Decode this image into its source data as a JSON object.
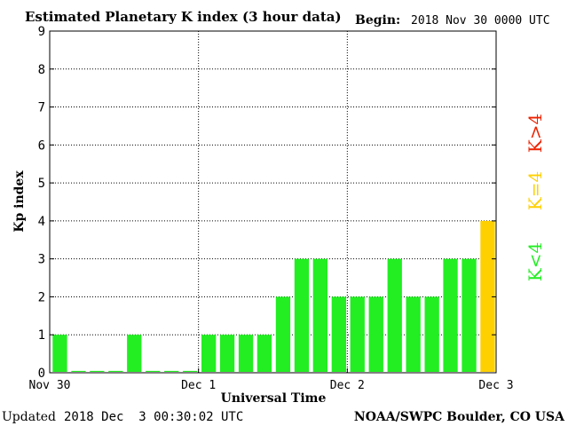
{
  "chart_data": {
    "type": "bar",
    "title": "Estimated Planetary K index (3 hour data)",
    "begin_label": "Begin:",
    "begin_value": "2018 Nov 30 0000 UTC",
    "xlabel": "Universal Time",
    "ylabel": "Kp index",
    "ylim": [
      0,
      9
    ],
    "y_ticks": [
      "0",
      "1",
      "2",
      "3",
      "4",
      "5",
      "6",
      "7",
      "8",
      "9"
    ],
    "x_tick_labels": [
      "Nov 30",
      "Dec 1",
      "Dec 2",
      "Dec 3"
    ],
    "grid": true,
    "bar_interval_hours": 3,
    "values": [
      1,
      0.05,
      0.05,
      0.05,
      1,
      0.05,
      0.05,
      0.05,
      1,
      1,
      1,
      1,
      2,
      3,
      3,
      2,
      2,
      2,
      3,
      2,
      2,
      3,
      3,
      4
    ],
    "legend": {
      "placement": "right",
      "items": [
        {
          "label": "K<4",
          "color": "#22ee22"
        },
        {
          "label": "K=4",
          "color": "#ffd000"
        },
        {
          "label": "K>4",
          "color": "#ee2200"
        }
      ]
    },
    "colors": {
      "low": "#22ee22",
      "equal": "#ffd000",
      "high": "#ee2200"
    }
  },
  "footer": {
    "updated_label": "Updated",
    "updated_value": "2018 Dec  3 00:30:02 UTC",
    "source": "NOAA/SWPC Boulder, CO USA"
  }
}
